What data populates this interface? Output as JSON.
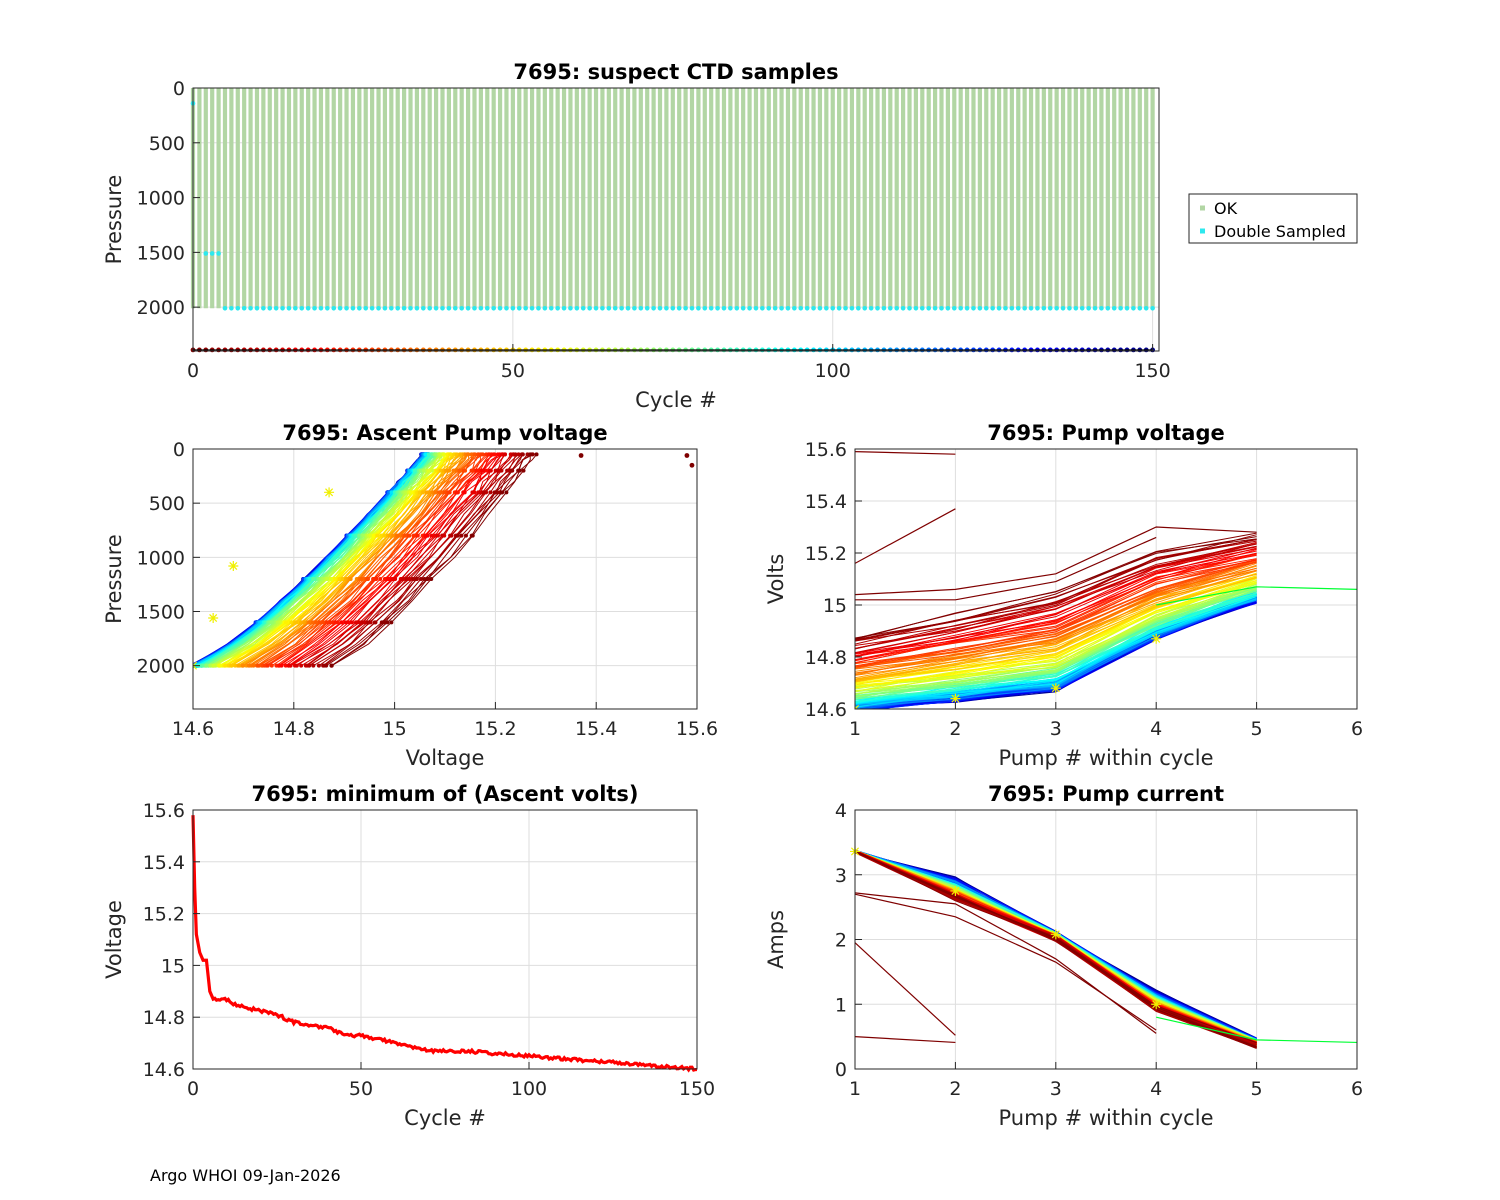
{
  "footer": "Argo WHOI 09-Jan-2026",
  "colors": {
    "ok": "#b2d6a4",
    "double_sampled": "#2de8ee",
    "min_line": "#ff0000",
    "marker": "#f0f000",
    "grid": "#dedede"
  },
  "chart_data": [
    {
      "id": "suspect",
      "type": "scatter",
      "title": "7695: suspect CTD samples",
      "xlabel": "Cycle #",
      "ylabel": "Pressure",
      "xlim": [
        0,
        151
      ],
      "ylim": [
        0,
        2400
      ],
      "y_reversed": true,
      "xticks": [
        0,
        50,
        100,
        150
      ],
      "yticks": [
        0,
        500,
        1000,
        1500,
        2000
      ],
      "legend": {
        "position": "right",
        "entries": [
          {
            "name": "OK",
            "color": "#b2d6a4"
          },
          {
            "name": "Double Sampled",
            "color": "#2de8ee"
          }
        ]
      },
      "n_cycles": 150,
      "ok_profile_range": [
        0,
        2010
      ],
      "double_sampled": [
        {
          "cycles": [
            0
          ],
          "pressure": 140
        },
        {
          "cycles": [
            2,
            3,
            4
          ],
          "pressure": 1510
        },
        {
          "from_cycle": 5,
          "to_cycle": 150,
          "pressure": 2010
        }
      ],
      "cycle_colorbar_pressure": 2390
    },
    {
      "id": "ascent",
      "type": "line",
      "title": "7695: Ascent Pump voltage",
      "xlabel": "Voltage",
      "ylabel": "Pressure",
      "xlim": [
        14.6,
        15.6
      ],
      "ylim": [
        0,
        2400
      ],
      "y_reversed": true,
      "xticks": [
        14.6,
        14.8,
        15,
        15.2,
        15.4,
        15.6
      ],
      "yticks": [
        0,
        500,
        1000,
        1500,
        2000
      ],
      "n_cycles": 150,
      "model": {
        "late_cycle": {
          "v_at_2000": 14.6,
          "v_at_50": 15.06
        },
        "early_cycle": {
          "v_at_2000": 14.88,
          "v_at_50": 15.28
        }
      },
      "outliers": [
        {
          "voltage": 15.58,
          "pressure": 60
        },
        {
          "voltage": 15.59,
          "pressure": 150
        },
        {
          "voltage": 15.37,
          "pressure": 60
        }
      ],
      "markers": [
        {
          "voltage": 14.6,
          "pressure": 2000
        },
        {
          "voltage": 14.64,
          "pressure": 1560
        },
        {
          "voltage": 14.68,
          "pressure": 1080
        },
        {
          "voltage": 14.87,
          "pressure": 400
        }
      ]
    },
    {
      "id": "pump_voltage",
      "type": "line",
      "title": "7695: Pump voltage",
      "xlabel": "Pump # within cycle",
      "ylabel": "Volts",
      "xlim": [
        1,
        6
      ],
      "ylim": [
        14.6,
        15.6
      ],
      "xticks": [
        1,
        2,
        3,
        4,
        5,
        6
      ],
      "yticks": [
        14.6,
        14.8,
        15,
        15.2,
        15.4,
        15.6
      ],
      "n_cycles": 150,
      "early_profile": [
        14.88,
        14.96,
        15.05,
        15.2,
        15.27
      ],
      "late_profile": [
        14.6,
        14.64,
        14.68,
        14.88,
        15.02
      ],
      "special_lines": [
        {
          "x": [
            1,
            2
          ],
          "y": [
            15.59,
            15.58
          ],
          "color": "#7f0000"
        },
        {
          "x": [
            1,
            2
          ],
          "y": [
            15.16,
            15.37
          ],
          "color": "#7f0000"
        },
        {
          "x": [
            1,
            2,
            3,
            4,
            5
          ],
          "y": [
            15.04,
            15.06,
            15.12,
            15.3,
            15.28
          ],
          "color": "#7f0000"
        },
        {
          "x": [
            1,
            2,
            3,
            4
          ],
          "y": [
            15.02,
            15.02,
            15.09,
            15.26
          ],
          "color": "#7f0000"
        },
        {
          "x": [
            4,
            5,
            6
          ],
          "y": [
            15.0,
            15.07,
            15.06
          ],
          "color": "#00ff33"
        }
      ],
      "markers": [
        {
          "x": 1,
          "y": 14.6
        },
        {
          "x": 2,
          "y": 14.64
        },
        {
          "x": 3,
          "y": 14.68
        },
        {
          "x": 4,
          "y": 14.87
        }
      ]
    },
    {
      "id": "minvolts",
      "type": "line",
      "title": "7695: minimum of (Ascent volts)",
      "xlabel": "Cycle #",
      "ylabel": "Voltage",
      "xlim": [
        0,
        150
      ],
      "ylim": [
        14.6,
        15.6
      ],
      "xticks": [
        0,
        50,
        100,
        150
      ],
      "yticks": [
        14.6,
        14.8,
        15,
        15.2,
        15.4,
        15.6
      ],
      "anchors": [
        [
          0,
          15.58
        ],
        [
          0.5,
          15.3
        ],
        [
          1,
          15.12
        ],
        [
          2,
          15.05
        ],
        [
          3,
          15.02
        ],
        [
          4,
          15.02
        ],
        [
          5,
          14.9
        ],
        [
          6,
          14.87
        ],
        [
          10,
          14.87
        ],
        [
          12,
          14.85
        ],
        [
          18,
          14.83
        ],
        [
          25,
          14.81
        ],
        [
          30,
          14.78
        ],
        [
          40,
          14.76
        ],
        [
          45,
          14.73
        ],
        [
          50,
          14.73
        ],
        [
          60,
          14.7
        ],
        [
          70,
          14.67
        ],
        [
          80,
          14.67
        ],
        [
          90,
          14.66
        ],
        [
          100,
          14.65
        ],
        [
          110,
          14.64
        ],
        [
          120,
          14.63
        ],
        [
          130,
          14.62
        ],
        [
          140,
          14.61
        ],
        [
          150,
          14.6
        ]
      ]
    },
    {
      "id": "pump_current",
      "type": "line",
      "title": "7695: Pump current",
      "xlabel": "Pump # within cycle",
      "ylabel": "Amps",
      "xlim": [
        1,
        6
      ],
      "ylim": [
        0,
        4
      ],
      "xticks": [
        1,
        2,
        3,
        4,
        5,
        6
      ],
      "yticks": [
        0,
        1,
        2,
        3,
        4
      ],
      "n_cycles": 150,
      "base_profile": [
        3.36,
        2.78,
        2.05,
        1.05,
        0.4
      ],
      "special_lines": [
        {
          "x": [
            1,
            2
          ],
          "y": [
            1.95,
            0.52
          ],
          "color": "#7f0000"
        },
        {
          "x": [
            1,
            2
          ],
          "y": [
            0.5,
            0.41
          ],
          "color": "#7f0000"
        },
        {
          "x": [
            1,
            2,
            3,
            4
          ],
          "y": [
            2.72,
            2.55,
            1.7,
            0.55
          ],
          "color": "#7f0000"
        },
        {
          "x": [
            1,
            2,
            3,
            4
          ],
          "y": [
            2.7,
            2.35,
            1.65,
            0.6
          ],
          "color": "#7f0000"
        },
        {
          "x": [
            4,
            5,
            6
          ],
          "y": [
            0.8,
            0.45,
            0.41
          ],
          "color": "#00ff33"
        }
      ],
      "markers": [
        {
          "x": 1,
          "y": 3.36
        },
        {
          "x": 2,
          "y": 2.75
        },
        {
          "x": 3,
          "y": 2.08
        },
        {
          "x": 4,
          "y": 1.0
        }
      ]
    }
  ]
}
